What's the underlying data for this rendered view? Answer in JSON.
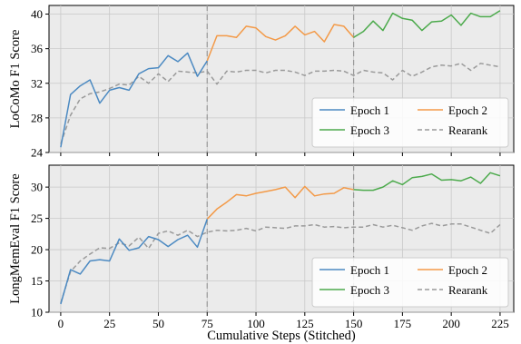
{
  "chart_data": [
    {
      "type": "line",
      "title": "",
      "xlabel": "",
      "ylabel": "LoCoMo F1 Score",
      "xlim": [
        -6,
        232
      ],
      "ylim": [
        24,
        41
      ],
      "xticks": [
        0,
        25,
        50,
        75,
        100,
        125,
        150,
        175,
        200,
        225
      ],
      "yticks": [
        24,
        28,
        32,
        36,
        40
      ],
      "tick_labels_shown_x": false,
      "grid": true,
      "vlines": [
        75,
        150
      ],
      "legend": {
        "placement": "lower-right",
        "columns": 2,
        "entries": [
          "Epoch 1",
          "Epoch 2",
          "Epoch 3",
          "Rearank"
        ]
      },
      "series": [
        {
          "name": "Epoch 1",
          "color": "#4c8ac2",
          "style": "solid",
          "x": [
            0,
            5,
            10,
            15,
            20,
            25,
            30,
            35,
            40,
            45,
            50,
            55,
            60,
            65,
            70,
            75
          ],
          "y": [
            24.6,
            30.7,
            31.7,
            32.4,
            29.7,
            31.2,
            31.5,
            31.2,
            33.1,
            33.7,
            33.8,
            35.2,
            34.5,
            35.5,
            32.8,
            34.6
          ]
        },
        {
          "name": "Epoch 2",
          "color": "#f39a48",
          "style": "solid",
          "x": [
            75,
            80,
            85,
            90,
            95,
            100,
            105,
            110,
            115,
            120,
            125,
            130,
            135,
            140,
            145,
            150
          ],
          "y": [
            34.6,
            37.5,
            37.5,
            37.3,
            38.6,
            38.4,
            37.4,
            37.0,
            37.5,
            38.6,
            37.6,
            38.0,
            36.8,
            38.8,
            38.6,
            37.3
          ]
        },
        {
          "name": "Epoch 3",
          "color": "#4caa4c",
          "style": "solid",
          "x": [
            150,
            155,
            160,
            165,
            170,
            175,
            180,
            185,
            190,
            195,
            200,
            205,
            210,
            215,
            220,
            225
          ],
          "y": [
            37.3,
            38.0,
            39.2,
            38.1,
            40.1,
            39.5,
            39.3,
            38.1,
            39.1,
            39.2,
            39.9,
            38.7,
            40.1,
            39.7,
            39.7,
            40.4
          ]
        },
        {
          "name": "Rearank",
          "color": "#9a9a9a",
          "style": "dashed",
          "x": [
            0,
            5,
            10,
            15,
            20,
            25,
            30,
            35,
            40,
            45,
            50,
            55,
            60,
            65,
            70,
            75,
            80,
            85,
            90,
            95,
            100,
            105,
            110,
            115,
            120,
            125,
            130,
            135,
            140,
            145,
            150,
            155,
            160,
            165,
            170,
            175,
            180,
            185,
            190,
            195,
            200,
            205,
            210,
            215,
            220,
            225
          ],
          "y": [
            25.0,
            28.3,
            30.2,
            30.8,
            31.0,
            31.4,
            31.9,
            31.8,
            32.8,
            32.0,
            33.1,
            32.2,
            33.4,
            33.3,
            33.2,
            33.4,
            31.9,
            33.4,
            33.3,
            33.5,
            33.5,
            33.2,
            33.5,
            33.5,
            33.3,
            32.9,
            33.4,
            33.4,
            33.5,
            33.4,
            32.9,
            33.5,
            33.3,
            33.2,
            32.4,
            33.5,
            32.8,
            33.3,
            33.9,
            34.1,
            34.0,
            34.3,
            33.5,
            34.3,
            34.1,
            33.9
          ]
        }
      ]
    },
    {
      "type": "line",
      "title": "",
      "xlabel": "Cumulative Steps (Stitched)",
      "ylabel": "LongMemEval F1 Score",
      "xlim": [
        -6,
        232
      ],
      "ylim": [
        10,
        33.5
      ],
      "xticks": [
        0,
        25,
        50,
        75,
        100,
        125,
        150,
        175,
        200,
        225
      ],
      "yticks": [
        10,
        15,
        20,
        25,
        30
      ],
      "tick_labels_shown_x": true,
      "grid": true,
      "vlines": [
        75,
        150
      ],
      "legend": {
        "placement": "lower-right",
        "columns": 2,
        "entries": [
          "Epoch 1",
          "Epoch 2",
          "Epoch 3",
          "Rearank"
        ]
      },
      "series": [
        {
          "name": "Epoch 1",
          "color": "#4c8ac2",
          "style": "solid",
          "x": [
            0,
            5,
            10,
            15,
            20,
            25,
            30,
            35,
            40,
            45,
            50,
            55,
            60,
            65,
            70,
            75
          ],
          "y": [
            11.3,
            16.8,
            16.1,
            18.2,
            18.4,
            18.2,
            21.7,
            19.9,
            20.3,
            22.1,
            21.6,
            20.5,
            21.6,
            22.3,
            20.4,
            24.9
          ]
        },
        {
          "name": "Epoch 2",
          "color": "#f39a48",
          "style": "solid",
          "x": [
            75,
            80,
            85,
            90,
            95,
            100,
            105,
            110,
            115,
            120,
            125,
            130,
            135,
            140,
            145,
            150
          ],
          "y": [
            24.9,
            26.5,
            27.6,
            28.8,
            28.6,
            29.0,
            29.3,
            29.6,
            30.0,
            28.3,
            30.1,
            28.6,
            28.9,
            29.0,
            29.9,
            29.6
          ]
        },
        {
          "name": "Epoch 3",
          "color": "#4caa4c",
          "style": "solid",
          "x": [
            150,
            155,
            160,
            165,
            170,
            175,
            180,
            185,
            190,
            195,
            200,
            205,
            210,
            215,
            220,
            225
          ],
          "y": [
            29.6,
            29.5,
            29.5,
            30.0,
            31.0,
            30.4,
            31.5,
            31.7,
            32.1,
            31.1,
            31.2,
            31.0,
            31.6,
            30.6,
            32.3,
            31.8
          ]
        },
        {
          "name": "Rearank",
          "color": "#9a9a9a",
          "style": "dashed",
          "x": [
            0,
            5,
            10,
            15,
            20,
            25,
            30,
            35,
            40,
            45,
            50,
            55,
            60,
            65,
            70,
            75,
            80,
            85,
            90,
            95,
            100,
            105,
            110,
            115,
            120,
            125,
            130,
            135,
            140,
            145,
            150,
            155,
            160,
            165,
            170,
            175,
            180,
            185,
            190,
            195,
            200,
            205,
            210,
            215,
            220,
            225
          ],
          "y": [
            11.5,
            16.5,
            18.2,
            19.3,
            20.3,
            20.2,
            21.1,
            20.6,
            22.0,
            20.2,
            22.6,
            23.0,
            22.3,
            23.1,
            22.1,
            22.8,
            23.1,
            23.0,
            23.1,
            23.4,
            23.0,
            23.6,
            23.5,
            23.4,
            23.8,
            23.8,
            24.0,
            23.6,
            23.7,
            23.5,
            23.6,
            23.6,
            24.0,
            23.6,
            23.9,
            23.5,
            23.1,
            23.8,
            24.2,
            23.8,
            24.1,
            24.1,
            23.6,
            23.1,
            22.6,
            24.0
          ]
        }
      ]
    }
  ]
}
